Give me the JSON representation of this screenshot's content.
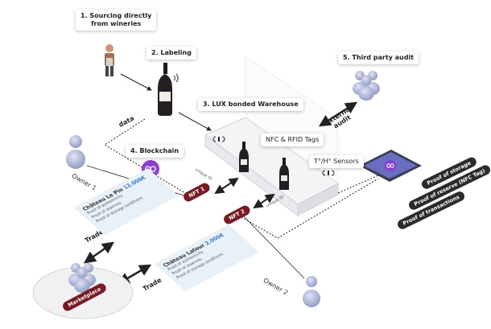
{
  "steps": {
    "s1_line1": "1. Sourcing directly",
    "s1_line2": "from wineries",
    "s2": "2. Labeling",
    "s3": "3. LUX bonded Warehouse",
    "s4": "4. Blockchain",
    "s5": "5. Third party audit"
  },
  "labels": {
    "data": "data",
    "external_audit_1": "External",
    "external_audit_2": "audit",
    "nfc_rfid": "NFC & RFID Tags",
    "sensors": "T°/H° Sensors",
    "unique_id_1": "unique ID",
    "unique_id_2": "unique ID",
    "owner1": "Owner 1",
    "owner2": "Owner 2",
    "trade1": "Trade",
    "trade2": "Trade",
    "marketplace": "Marketplace",
    "nft1": "NFT 1",
    "nft2": "NFT 2"
  },
  "proofs": [
    "Proof of storage",
    "Proof of reserve (NFC Tag)",
    "Proof of transactions"
  ],
  "cards": [
    {
      "title": "Château Le Pin",
      "price": "12.000€",
      "lines": [
        "Proof of authenticity",
        "Proof of reserves",
        "Proof of storage conditions"
      ]
    },
    {
      "title": "Château Latour",
      "price": "2.000€",
      "lines": [
        "Proof of authenticity",
        "Proof of reserves",
        "Proof of storage conditions"
      ]
    }
  ],
  "colors": {
    "wine": "#7a1a24",
    "person": "#9aa3c9",
    "card_bg": "#e8f0f8",
    "accent_blue": "#3a78c8",
    "blockchain_purple": "#8a3fd1"
  },
  "icons": [
    "winemaker-icon",
    "wine-bottle-icon",
    "wifi-signal-icon",
    "person-icon",
    "group-icon",
    "blockchain-icon"
  ]
}
